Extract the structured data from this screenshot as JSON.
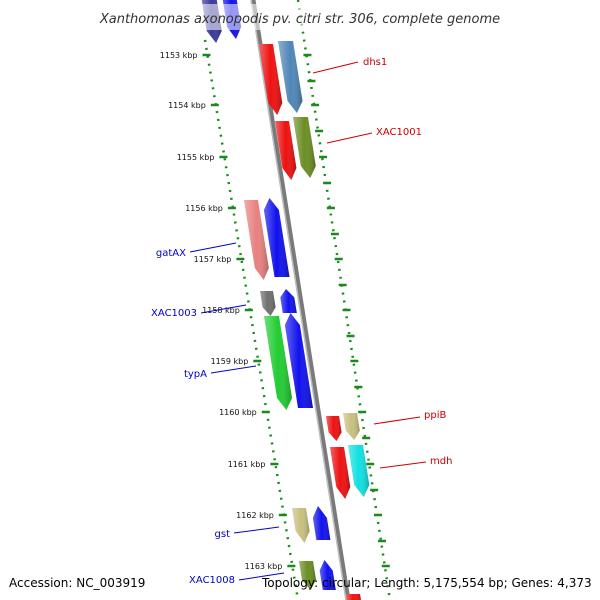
{
  "title": "Xanthomonas axonopodis pv. citri str. 306, complete genome",
  "accession": "Accession: NC_003919",
  "topology": "Topology: circular; Length: 5,175,554 bp; Genes: 4,373",
  "ticks": [
    "1153 kbp",
    "1154 kbp",
    "1155 kbp",
    "1156 kbp",
    "1157 kbp",
    "1158 kbp",
    "1159 kbp",
    "1160 kbp",
    "1161 kbp",
    "1162 kbp",
    "1163 kbp"
  ],
  "labels_forward": [
    "dhs1",
    "XAC1001",
    "ppiB",
    "mdh"
  ],
  "labels_reverse": [
    "gatAX",
    "XAC1003",
    "typA",
    "gst",
    "XAC1008"
  ],
  "colors": {
    "forward_label": "#cc0000",
    "reverse_label": "#0000cc",
    "backbone": "#888888",
    "dotted_track": "#1a8a1a",
    "red": "#ee1111",
    "blue": "#1111ee",
    "steel_blue": "#4f86b8",
    "olive": "#6b8e23",
    "salmon": "#e88080",
    "gray": "#707070",
    "green": "#22cc33",
    "khaki": "#c8c080",
    "cyan": "#11e0e0",
    "navy": "#3a3a9a"
  }
}
